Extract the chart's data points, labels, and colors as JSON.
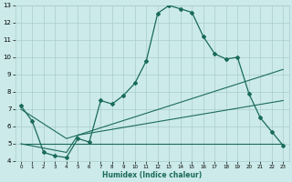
{
  "xlabel": "Humidex (Indice chaleur)",
  "bg_color": "#cceaea",
  "grid_color": "#aacccc",
  "line_color": "#1a6b5a",
  "xlim": [
    -0.5,
    23.5
  ],
  "ylim": [
    4,
    13
  ],
  "xticks": [
    0,
    1,
    2,
    3,
    4,
    5,
    6,
    7,
    8,
    9,
    10,
    11,
    12,
    13,
    14,
    15,
    16,
    17,
    18,
    19,
    20,
    21,
    22,
    23
  ],
  "yticks": [
    4,
    5,
    6,
    7,
    8,
    9,
    10,
    11,
    12,
    13
  ],
  "series1_x": [
    0,
    1,
    2,
    3,
    4,
    5,
    6,
    7,
    8,
    9,
    10,
    11,
    12,
    13,
    14,
    15,
    16,
    17,
    18,
    19,
    20,
    21,
    22,
    23
  ],
  "series1_y": [
    7.2,
    6.3,
    4.5,
    4.3,
    4.2,
    5.3,
    5.1,
    7.5,
    7.3,
    7.8,
    8.5,
    9.8,
    12.55,
    13.0,
    12.8,
    12.6,
    11.2,
    10.2,
    9.9,
    10.0,
    7.9,
    6.5,
    5.7,
    4.9
  ],
  "series2_x": [
    0,
    23
  ],
  "series2_y": [
    5.0,
    5.0
  ],
  "series3_x": [
    0,
    4,
    5,
    23
  ],
  "series3_y": [
    7.0,
    5.3,
    5.5,
    9.3
  ],
  "series4_x": [
    0,
    4,
    5,
    23
  ],
  "series4_y": [
    5.0,
    4.5,
    5.5,
    7.5
  ]
}
